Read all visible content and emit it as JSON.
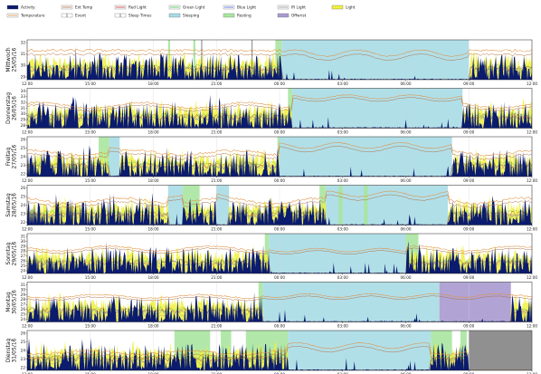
{
  "legend": [
    {
      "label": "Activity",
      "kind": "area",
      "color": "#0b1b6e"
    },
    {
      "label": "Ext Temp",
      "kind": "line",
      "color": "#b07040"
    },
    {
      "label": "Red Light",
      "kind": "line",
      "color": "#d03030"
    },
    {
      "label": "Green Light",
      "kind": "line",
      "color": "#40c040"
    },
    {
      "label": "Blue Light",
      "kind": "line",
      "color": "#4060e0"
    },
    {
      "label": "IR Light",
      "kind": "line",
      "color": "#909090"
    },
    {
      "label": "Light",
      "kind": "area",
      "color": "#f0f040"
    },
    {
      "label": "Temperature",
      "kind": "line",
      "color": "#e09040"
    },
    {
      "label": "Event",
      "kind": "marker",
      "color": "#404040"
    },
    {
      "label": "Sleep Times",
      "kind": "marker",
      "color": "#404040"
    },
    {
      "label": "Sleeping",
      "kind": "area",
      "color": "#a8dbe6"
    },
    {
      "label": "Resting",
      "kind": "area",
      "color": "#a8e6a0"
    },
    {
      "label": "Offwrist",
      "kind": "area",
      "color": "#a99ad0"
    }
  ],
  "colors": {
    "activity": "#0b1b6e",
    "light": "#f0f040",
    "temperature": "#e09040",
    "ext_temp": "#b07040",
    "red": "#d03030",
    "green": "#40c040",
    "blue": "#4060e0",
    "ir": "#909090",
    "sleeping": "#a8dbe6",
    "resting": "#a8e6a0",
    "offwrist": "#a99ad0",
    "nodata": "#909090"
  },
  "chart_data": {
    "type": "area",
    "x_tick_labels": [
      "12:00",
      "15:00",
      "18:00",
      "21:00",
      "00:00",
      "03:00",
      "06:00",
      "09:00",
      "12:00"
    ],
    "x_range_hours": [
      0,
      24
    ],
    "panels": [
      {
        "label_line1": "Mittwoch",
        "label_line2": "25/05/16",
        "y_ticks": [
          "32",
          "31",
          "30",
          "29"
        ],
        "ylim": [
          28.5,
          33
        ],
        "sleeping": [
          [
            12.1,
            21.0
          ]
        ],
        "resting": [
          [
            11.8,
            12.1
          ],
          [
            6.7,
            6.8
          ],
          [
            7.9,
            8.0
          ]
        ],
        "offwrist": [],
        "nodata": [],
        "events": [
          8.3,
          10.7
        ],
        "temp_level": [
          31.8,
          31.8
        ],
        "sleep_temp_level": 31.5
      },
      {
        "label_line1": "Donnerstag",
        "label_line2": "26/05/16",
        "y_ticks": [
          "34",
          "33",
          "32",
          "31",
          "30",
          "29",
          "28"
        ],
        "ylim": [
          27.5,
          34.5
        ],
        "sleeping": [
          [
            12.6,
            20.7
          ]
        ],
        "resting": [
          [
            12.4,
            12.6
          ]
        ],
        "offwrist": [],
        "nodata": [],
        "events": [],
        "temp_level": [
          31.0,
          32.0
        ],
        "sleep_temp_level": 33.0
      },
      {
        "label_line1": "Freitag",
        "label_line2": "27/05/16",
        "y_ticks": [
          "26",
          "25",
          "24",
          "23",
          "22"
        ],
        "ylim": [
          21.5,
          26.5
        ],
        "sleeping": [
          [
            3.9,
            4.4
          ],
          [
            12.0,
            20.2
          ]
        ],
        "resting": [
          [
            3.4,
            3.9
          ],
          [
            11.9,
            12.0
          ]
        ],
        "offwrist": [],
        "nodata": [],
        "events": [],
        "temp_level": [
          24.2,
          24.8
        ],
        "sleep_temp_level": 25.4
      },
      {
        "label_line1": "Samstag",
        "label_line2": "28/05/16",
        "y_ticks": [
          "26",
          "25",
          "24",
          "23",
          "22"
        ],
        "ylim": [
          21.5,
          26.5
        ],
        "sleeping": [
          [
            6.7,
            7.4
          ],
          [
            9.0,
            9.6
          ],
          [
            14.2,
            20.0
          ]
        ],
        "resting": [
          [
            7.4,
            8.2
          ],
          [
            13.9,
            14.2
          ],
          [
            14.8,
            15.0
          ],
          [
            16.0,
            16.2
          ]
        ],
        "offwrist": [],
        "nodata": [],
        "events": [],
        "temp_level": [
          24.2,
          24.9
        ],
        "sleep_temp_level": 25.4
      },
      {
        "label_line1": "Sonntag",
        "label_line2": "29/05/16",
        "y_ticks": [
          "31",
          "30",
          "29",
          "28",
          "27",
          "26",
          "25",
          "24"
        ],
        "ylim": [
          23.5,
          31.5
        ],
        "sleeping": [
          [
            11.5,
            18.0
          ]
        ],
        "resting": [
          [
            11.3,
            11.5
          ],
          [
            18.0,
            18.6
          ]
        ],
        "offwrist": [],
        "nodata": [],
        "events": [],
        "temp_level": [
          28.0,
          29.0
        ],
        "sleep_temp_level": 28.2
      },
      {
        "label_line1": "Montag",
        "label_line2": "30/05/16",
        "y_ticks": [
          "31",
          "30",
          "29",
          "28",
          "27",
          "26",
          "25",
          "24"
        ],
        "ylim": [
          23.5,
          31.5
        ],
        "sleeping": [
          [
            11.2,
            19.6
          ]
        ],
        "resting": [
          [
            11.0,
            11.2
          ]
        ],
        "offwrist": [
          [
            19.6,
            23.0
          ]
        ],
        "nodata": [],
        "events": [],
        "temp_level": [
          28.3,
          29.0
        ],
        "sleep_temp_level": 28.8
      },
      {
        "label_line1": "Dienstag",
        "label_line2": "31/05/16",
        "y_ticks": [
          "26",
          "25",
          "24",
          "23",
          "22"
        ],
        "ylim": [
          21.5,
          26.5
        ],
        "sleeping": [
          [
            12.4,
            19.2
          ]
        ],
        "resting": [
          [
            7.0,
            8.7
          ],
          [
            9.2,
            9.7
          ],
          [
            10.4,
            12.4
          ],
          [
            19.2,
            20.2
          ],
          [
            20.6,
            20.9
          ]
        ],
        "offwrist": [],
        "nodata": [
          [
            21.0,
            24.0
          ]
        ],
        "events": [],
        "temp_level": [
          23.5,
          24.0
        ],
        "sleep_temp_level": 24.6
      }
    ]
  }
}
